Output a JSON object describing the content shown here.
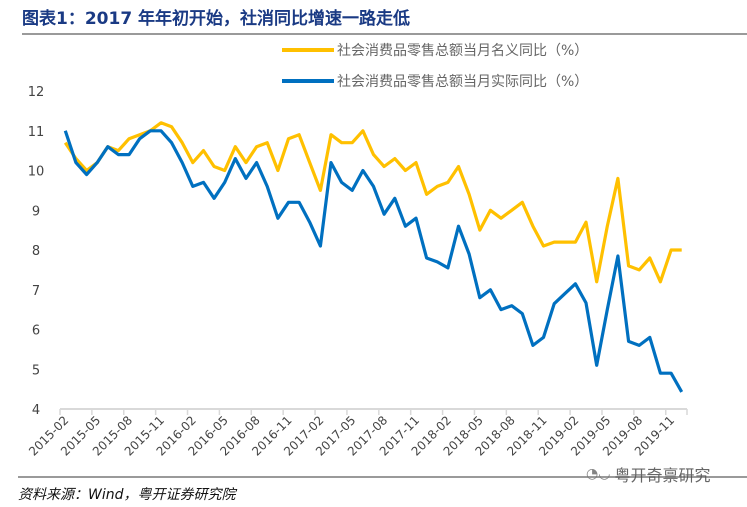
{
  "title": "图表1：2017 年年初开始，社消同比增速一路走低",
  "source": "资料来源：Wind，粤开证券研究院",
  "watermark": "粤开奇禀研究",
  "chart_data": {
    "type": "line",
    "title": "图表1：2017 年年初开始，社消同比增速一路走低",
    "xlabel": "",
    "ylabel": "",
    "ylim": [
      4,
      12
    ],
    "yticks": [
      "4",
      "5",
      "6",
      "7",
      "8",
      "9",
      "10",
      "11",
      "12"
    ],
    "grid": false,
    "legend": "top-right",
    "xtick_labels": [
      "2015-02",
      "2015-05",
      "2015-08",
      "2015-11",
      "2016-02",
      "2016-05",
      "2016-08",
      "2016-11",
      "2017-02",
      "2017-05",
      "2017-08",
      "2017-11",
      "2018-02",
      "2018-05",
      "2018-08",
      "2018-11",
      "2019-02",
      "2019-05",
      "2019-08",
      "2019-11"
    ],
    "x_start": "2015-02",
    "x_end": "2019-12",
    "series": [
      {
        "name": "社会消费品零售总额当月名义同比（%）",
        "color": "#FFC000",
        "values": [
          10.7,
          10.3,
          10.0,
          10.2,
          10.6,
          10.5,
          10.8,
          10.9,
          11.0,
          11.2,
          11.1,
          10.7,
          10.2,
          10.5,
          10.1,
          10.0,
          10.6,
          10.2,
          10.6,
          10.7,
          10.0,
          10.8,
          10.9,
          10.2,
          9.5,
          10.9,
          10.7,
          10.7,
          11.0,
          10.4,
          10.1,
          10.3,
          10.0,
          10.2,
          9.4,
          9.6,
          9.7,
          10.1,
          9.4,
          8.5,
          9.0,
          8.8,
          9.0,
          9.2,
          8.6,
          8.1,
          8.2,
          8.2,
          8.2,
          8.7,
          7.2,
          8.6,
          9.8,
          7.6,
          7.5,
          7.8,
          7.2,
          8.0,
          8.0
        ]
      },
      {
        "name": "社会消费品零售总额当月实际同比（%）",
        "color": "#0070C0",
        "values": [
          11.0,
          10.2,
          9.9,
          10.2,
          10.6,
          10.4,
          10.4,
          10.8,
          11.0,
          11.0,
          10.7,
          10.2,
          9.6,
          9.7,
          9.3,
          9.7,
          10.3,
          9.8,
          10.2,
          9.6,
          8.8,
          9.2,
          9.2,
          8.7,
          8.1,
          10.2,
          9.7,
          9.5,
          10.0,
          9.6,
          8.9,
          9.3,
          8.6,
          8.8,
          7.8,
          7.7,
          7.55,
          8.6,
          7.9,
          6.8,
          7.0,
          6.5,
          6.6,
          6.4,
          5.6,
          5.8,
          6.65,
          6.9,
          7.15,
          6.67,
          5.1,
          6.5,
          7.85,
          5.7,
          5.6,
          5.8,
          4.9,
          4.9,
          4.43
        ]
      }
    ]
  }
}
